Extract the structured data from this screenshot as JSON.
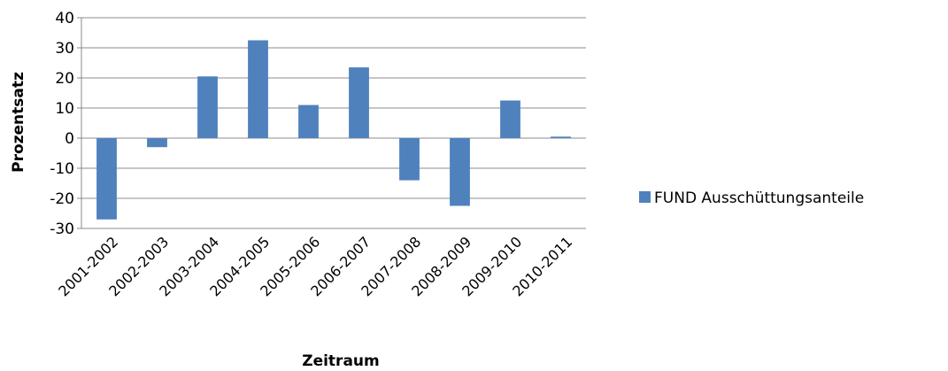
{
  "chart_data": {
    "type": "bar",
    "title": "",
    "xlabel": "Zeitraum",
    "ylabel": "Prozentsatz",
    "ylim": [
      -30,
      40
    ],
    "yticks": [
      40,
      30,
      20,
      10,
      0,
      -10,
      -20,
      -30
    ],
    "grid": true,
    "legend_position": "right",
    "categories": [
      "2001-2002",
      "2002-2003",
      "2003-2004",
      "2004-2005",
      "2005-2006",
      "2006-2007",
      "2007-2008",
      "2008-2009",
      "2009-2010",
      "2010-2011"
    ],
    "series": [
      {
        "name": "FUND Ausschüttungsanteile",
        "color": "#4f81bd",
        "values": [
          -27,
          -3,
          20.5,
          32.5,
          11,
          23.5,
          -14,
          -22.5,
          12.5,
          0.5
        ]
      }
    ]
  }
}
